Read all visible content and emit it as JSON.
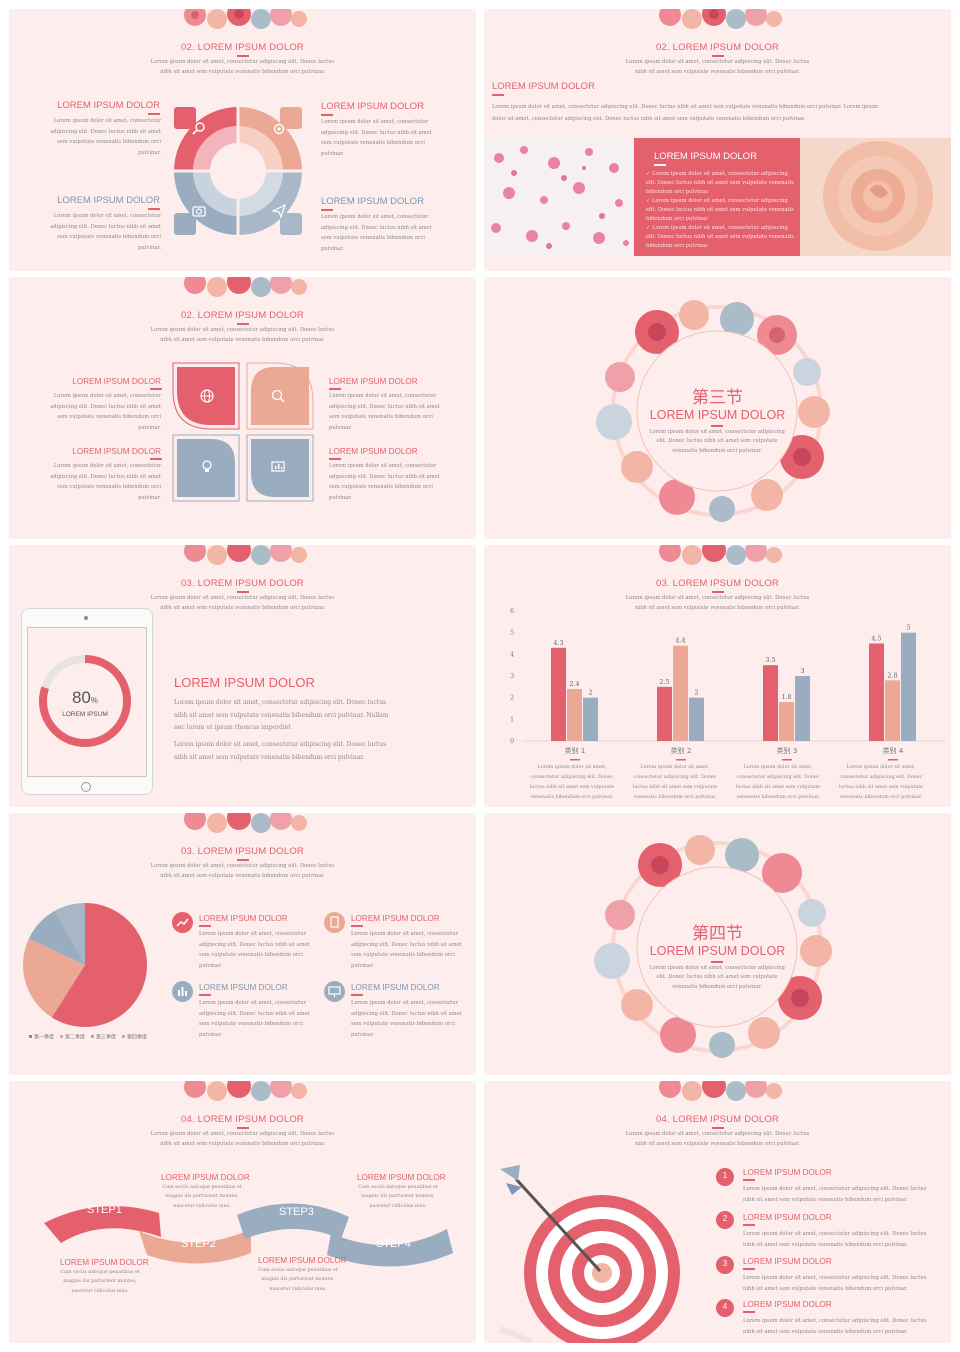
{
  "colors": {
    "coral": "#e4606d",
    "peach": "#eba894",
    "slate": "#9aadc0",
    "bg": "#fdeeed"
  },
  "lorem": {
    "short": "Lorem ipsum dolor sit amet, consectetur adipiscing elit. Donec luctus nibh sit amet sem vulputate venenatis bibendum orci pulvinar.",
    "step": "Cum sociis natoque penatibus et magnis dis parturient montes, nascetur ridiculus mus."
  },
  "s1": {
    "title": "02. LOREM IPSUM DOLOR",
    "sub": "Lorem ipsum dolor sit amet, consectetur adipiscing elit. Donec luctus nibh sit amet sem vulputate venenatis bibendum orci pulvinar.",
    "items": [
      "LOREM IPSUM DOLOR",
      "LOREM IPSUM DOLOR",
      "LOREM IPSUM DOLOR",
      "LOREM IPSUM DOLOR"
    ]
  },
  "s2": {
    "title": "02. LOREM IPSUM DOLOR",
    "sub": "Lorem ipsum dolor sit amet, consectetur adipiscing elit. Donec luctus nibh sit amet sem vulputate venenatis bibendum orci pulvinar.",
    "heading": "LOREM IPSUM DOLOR",
    "body": "Lorem ipsum dolor sit amet, consectetur adipiscing elit. Donec luctus nibh sit amet sem vulputate venenatis bibendum orci pulvinar. Lorem ipsum dolor sit amet, consectetur adipiscing elit. Donec luctus nibh sit amet sem vulputate venenatis bibendum orci pulvinar.",
    "box_title": "LOREM IPSUM DOLOR",
    "bullets": [
      "Lorem ipsum dolor sit amet, consectetur adipiscing elit. Donec luctus nibh sit amet sem vulputate venenatis bibendum orci pulvinar.",
      "Lorem ipsum dolor sit amet, consectetur adipiscing elit. Donec luctus nibh sit amet sem vulputate venenatis bibendum orci pulvinar.",
      "Lorem ipsum dolor sit amet, consectetur adipiscing elit. Donec luctus nibh sit amet sem vulputate venenatis bibendum orci pulvinar."
    ]
  },
  "s3": {
    "title": "02. LOREM IPSUM DOLOR",
    "sub": "Lorem ipsum dolor sit amet, consectetur adipiscing elit. Donec luctus nibh sit amet sem vulputate venenatis bibendum orci pulvinar.",
    "items": [
      "LOREM IPSUM DOLOR",
      "LOREM IPSUM DOLOR",
      "LOREM IPSUM DOLOR",
      "LOREM IPSUM DOLOR"
    ]
  },
  "s4": {
    "cn": "第三节",
    "title": "LOREM IPSUM DOLOR",
    "sub": "Lorem ipsum dolor sit amet, consectetur adipiscing elit. Donec luctus nibh sit amet sem vulputate venenatis bibendum orci pulvinar."
  },
  "s5": {
    "title": "03. LOREM IPSUM DOLOR",
    "sub": "Lorem ipsum dolor sit amet, consectetur adipiscing elit. Donec luctus nibh sit amet sem vulputate venenatis bibendum orci pulvinar.",
    "percent": "80",
    "percent_unit": "%",
    "percent_label": "LOREM IPSUM",
    "percent_value": 0.8,
    "heading": "LOREM IPSUM DOLOR",
    "p1": "Lorem ipsum dolor sit amet, consectetur adipiscing elit. Donec luctus nibh sit amet sem vulputate venenatis bibendum orci pulvinar. Nullam nec lorem ut ipsum rhoncus imperdiet",
    "p2": "Lorem ipsum dolor sit amet, consectetur adipiscing elit. Donec luctus nibh sit amet sem vulputate venenatis bibendum orci pulvinar."
  },
  "s6": {
    "title": "03. LOREM IPSUM DOLOR",
    "sub": "Lorem ipsum dolor sit amet, consectetur adipiscing elit. Donec luctus nibh sit amet sem vulputate venenatis bibendum orci pulvinar.",
    "captions": [
      "Lorem ipsum dolor sit amet, consectetur adipiscing elit. Donec luctus nibh sit amet sem vulputate venenatis bibendum orci pulvinar.",
      "Lorem ipsum dolor sit amet, consectetur adipiscing elit. Donec luctus nibh sit amet sem vulputate venenatis bibendum orci pulvinar.",
      "Lorem ipsum dolor sit amet, consectetur adipiscing elit. Donec luctus nibh sit amet sem vulputate venenatis bibendum orci pulvinar.",
      "Lorem ipsum dolor sit amet, consectetur adipiscing elit. Donec luctus nibh sit amet sem vulputate venenatis bibendum orci pulvinar."
    ]
  },
  "s7": {
    "title": "03. LOREM IPSUM DOLOR",
    "sub": "Lorem ipsum dolor sit amet, consectetur adipiscing elit. Donec luctus nibh sit amet sem vulputate venenatis bibendum orci pulvinar.",
    "items": [
      "LOREM IPSUM DOLOR",
      "LOREM IPSUM DOLOR",
      "LOREM IPSUM DOLOR",
      "LOREM IPSUM DOLOR"
    ]
  },
  "s8": {
    "cn": "第四节",
    "title": "LOREM IPSUM DOLOR",
    "sub": "Lorem ipsum dolor sit amet, consectetur adipiscing elit. Donec luctus nibh sit amet sem vulputate venenatis bibendum orci pulvinar."
  },
  "s9": {
    "title": "04. LOREM IPSUM DOLOR",
    "sub": "Lorem ipsum dolor sit amet, consectetur adipiscing elit. Donec luctus nibh sit amet sem vulputate venenatis bibendum orci pulvinar.",
    "steps": [
      "STEP1",
      "STEP2",
      "STEP3",
      "STEP4"
    ],
    "labels": [
      "LOREM IPSUM DOLOR",
      "LOREM IPSUM DOLOR",
      "LOREM IPSUM DOLOR",
      "LOREM IPSUM DOLOR"
    ]
  },
  "s10": {
    "title": "04. LOREM IPSUM DOLOR",
    "sub": "Lorem ipsum dolor sit amet, consectetur adipiscing elit. Donec luctus nibh sit amet sem vulputate venenatis bibendum orci pulvinar.",
    "numbers": [
      "1",
      "2",
      "3",
      "4"
    ],
    "items": [
      "LOREM IPSUM DOLOR",
      "LOREM IPSUM DOLOR",
      "LOREM IPSUM DOLOR",
      "LOREM IPSUM DOLOR"
    ],
    "body": "Lorem ipsum dolor sit amet, consectetur adipiscing elit. Donec luctus nibh sit amet sem vulputate venenatis bibendum orci pulvinar."
  },
  "chart_data": [
    {
      "type": "bar",
      "categories": [
        "类别 1",
        "类别 2",
        "类别 3",
        "类别 4"
      ],
      "series": [
        {
          "values": [
            4.3,
            2.5,
            3.5,
            4.5
          ],
          "color": "#e4606d"
        },
        {
          "values": [
            2.4,
            4.4,
            1.8,
            2.8
          ],
          "color": "#eba894"
        },
        {
          "values": [
            2,
            2,
            3,
            5
          ],
          "color": "#9aadc0"
        }
      ],
      "yticks": [
        "0",
        "1",
        "2",
        "3",
        "4",
        "5",
        "6"
      ],
      "ylim": [
        0,
        6
      ],
      "grid": false
    },
    {
      "type": "pie",
      "labels": [
        "第一季度",
        "第二季度",
        "第三季度",
        "第四季度"
      ],
      "values": [
        59,
        23,
        10,
        8
      ],
      "colors": [
        "#e4606d",
        "#eba894",
        "#9aadc0",
        "#a8b6c6"
      ]
    }
  ]
}
